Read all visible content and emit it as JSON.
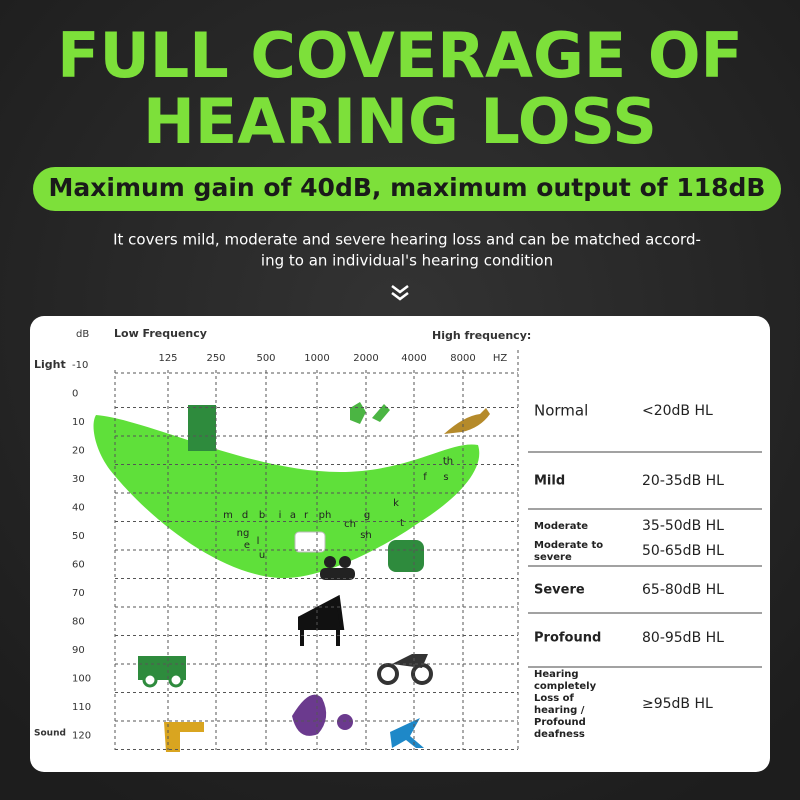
{
  "title": [
    "FULL COVERAGE OF",
    "HEARING LOSS"
  ],
  "highlight": "Maximum gain of 40dB, maximum output of 118dB",
  "description": [
    "It covers mild, moderate and severe hearing loss and can be matched accord-",
    "ing to an individual's hearing condition"
  ],
  "audiogram": {
    "unit": "dB",
    "low_label": "Low Frequency",
    "high_label": "High frequency:",
    "light_label": "Light",
    "sound_label": "Sound",
    "hz_label": "HZ",
    "frequencies": [
      125,
      250,
      500,
      1000,
      2000,
      4000,
      8000
    ],
    "levels": [
      -10,
      0,
      10,
      20,
      30,
      40,
      50,
      60,
      70,
      80,
      90,
      100,
      110,
      120
    ],
    "speech_sounds": [
      "m",
      "d",
      "b",
      "i",
      "a",
      "r",
      "ph",
      "g",
      "ch",
      "sh",
      "ng",
      "e",
      "l",
      "u",
      "k",
      "t",
      "f",
      "s",
      "th"
    ]
  },
  "categories": [
    {
      "name": [
        "Normal"
      ],
      "range": "<20dB HL"
    },
    {
      "name": [
        "Mild"
      ],
      "range": "20-35dB HL"
    },
    {
      "name": [
        "Moderate"
      ],
      "range": "35-50dB HL"
    },
    {
      "name": [
        "Moderate to",
        "severe"
      ],
      "range": "50-65dB HL"
    },
    {
      "name": [
        "Severe"
      ],
      "range": "65-80dB HL"
    },
    {
      "name": [
        "Profound"
      ],
      "range": "80-95dB HL"
    },
    {
      "name": [
        "Hearing",
        "completely",
        "Loss of",
        "hearing /",
        "Profound",
        "deafness"
      ],
      "range": "≥95dB HL"
    }
  ]
}
